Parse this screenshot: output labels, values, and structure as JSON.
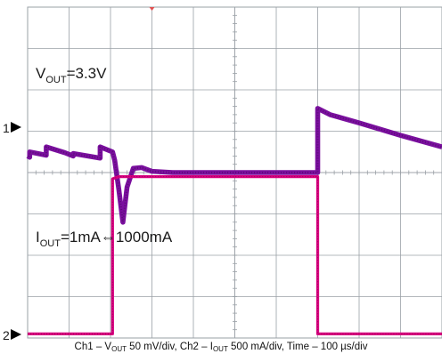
{
  "chart_data": {
    "type": "line",
    "title": "",
    "grid": true,
    "divisions": {
      "x": 10,
      "y": 8
    },
    "annotations": {
      "vout": {
        "base": "V",
        "sub": "OUT",
        "rest": "=3.3V"
      },
      "iout": {
        "base": "I",
        "sub": "OUT",
        "rest": "=1mA⇔1000mA"
      }
    },
    "channel_markers": [
      "1",
      "2"
    ],
    "caption": {
      "p1": "Ch1 – V",
      "s1": "OUT",
      "p2": " 50 mV/div, Ch2 – I",
      "s2": "OUT",
      "p3": " 500 mA/div,  Time – 100 µs/div"
    },
    "colors": {
      "ch1": "#7a0f9e",
      "ch2": "#d8007f",
      "grid": "#9aa0a6",
      "marker": "#000000"
    },
    "x_unit": "div",
    "y_unit": "div",
    "xlim": [
      0,
      10
    ],
    "ylim": [
      -4,
      4
    ],
    "series": [
      {
        "channel": 1,
        "x": [
          0,
          0.05,
          0.05,
          0.45,
          0.45,
          0.9,
          1.1,
          1.1,
          1.75,
          1.75,
          2.05,
          2.1,
          2.2,
          2.3,
          2.4,
          2.55,
          2.75,
          3.0,
          3.5,
          5,
          7.0,
          7.0,
          7.3,
          8,
          9,
          10
        ],
        "y": [
          0.4,
          0.37,
          0.5,
          0.42,
          0.62,
          0.48,
          0.4,
          0.46,
          0.35,
          0.62,
          0.5,
          0.3,
          -0.4,
          -1.2,
          -0.35,
          0.1,
          0.12,
          0.03,
          0.0,
          0.0,
          0.0,
          1.55,
          1.4,
          1.2,
          0.9,
          0.62
        ],
        "thickness_div": 0.12
      },
      {
        "channel": 2,
        "x": [
          0,
          2.05,
          2.05,
          2.2,
          5,
          7.0,
          7.0,
          10
        ],
        "y": [
          -3.9,
          -3.9,
          -0.15,
          -0.1,
          -0.1,
          -0.1,
          -3.9,
          -3.9
        ],
        "thickness_div": 0.07
      }
    ]
  }
}
